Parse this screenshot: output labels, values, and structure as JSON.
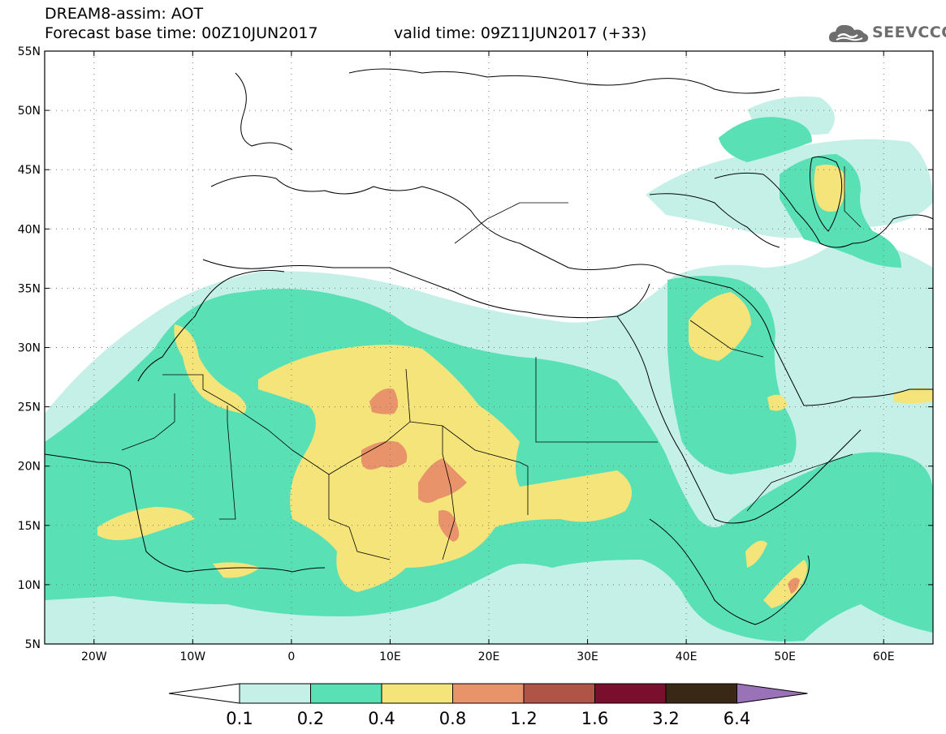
{
  "header": {
    "title": "DREAM8-assim: AOT",
    "base_time": "Forecast base time: 00Z10JUN2017",
    "valid_time": "valid time: 09Z11JUN2017 (+33)"
  },
  "logo": {
    "text": "SEEVCCC",
    "icon": "cloud-icon"
  },
  "map": {
    "lat_ticks": [
      {
        "value": 55,
        "label": "55N"
      },
      {
        "value": 50,
        "label": "50N"
      },
      {
        "value": 45,
        "label": "45N"
      },
      {
        "value": 40,
        "label": "40N"
      },
      {
        "value": 35,
        "label": "35N"
      },
      {
        "value": 30,
        "label": "30N"
      },
      {
        "value": 25,
        "label": "25N"
      },
      {
        "value": 20,
        "label": "20N"
      },
      {
        "value": 15,
        "label": "15N"
      },
      {
        "value": 10,
        "label": "10N"
      },
      {
        "value": 5,
        "label": "5N"
      }
    ],
    "lon_ticks": [
      {
        "value": -20,
        "label": "20W"
      },
      {
        "value": -10,
        "label": "10W"
      },
      {
        "value": 0,
        "label": "0"
      },
      {
        "value": 10,
        "label": "10E"
      },
      {
        "value": 20,
        "label": "20E"
      },
      {
        "value": 30,
        "label": "30E"
      },
      {
        "value": 40,
        "label": "40E"
      },
      {
        "value": 50,
        "label": "50E"
      },
      {
        "value": 60,
        "label": "60E"
      }
    ],
    "lon_range": [
      -25,
      65
    ],
    "lat_range": [
      5,
      55
    ],
    "grid": "dotted"
  },
  "colorbar": {
    "labels": [
      "0.1",
      "0.2",
      "0.4",
      "0.8",
      "1.2",
      "1.6",
      "3.2",
      "6.4"
    ],
    "colors": [
      "#ffffff",
      "#c4f0e8",
      "#5ae0b5",
      "#f5e47a",
      "#e8936a",
      "#b05448",
      "#7a0f2d",
      "#3a2816",
      "#9a72b8"
    ]
  }
}
